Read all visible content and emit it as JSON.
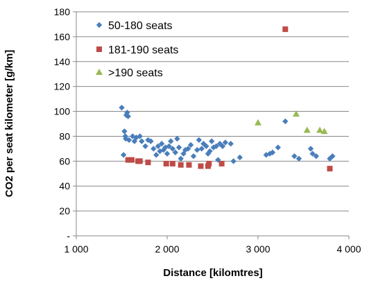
{
  "chart_data": {
    "type": "scatter",
    "xlabel": "Distance [kilomtres]",
    "ylabel": "CO2 per seat kilometer [g/km]",
    "xlim": [
      1000,
      4000
    ],
    "ylim": [
      0,
      180
    ],
    "x_ticks": [
      1000,
      2000,
      3000,
      4000
    ],
    "x_tick_labels": [
      "1 000",
      "2 000",
      "3 000",
      "4 000"
    ],
    "y_ticks": [
      0,
      20,
      40,
      60,
      80,
      100,
      120,
      140,
      160,
      180
    ],
    "y_tick_labels": [
      "-",
      "20",
      "40",
      "60",
      "80",
      "100",
      "120",
      "140",
      "160",
      "180"
    ],
    "grid": "horizontal",
    "legend_position": "top-left",
    "series": [
      {
        "name": "50-180 seats",
        "color": "#4a7ebb",
        "marker": "diamond",
        "points": [
          [
            1500,
            103
          ],
          [
            1520,
            65
          ],
          [
            1530,
            84
          ],
          [
            1540,
            80
          ],
          [
            1545,
            78
          ],
          [
            1550,
            97
          ],
          [
            1560,
            99
          ],
          [
            1570,
            96
          ],
          [
            1580,
            77
          ],
          [
            1620,
            80
          ],
          [
            1640,
            76
          ],
          [
            1660,
            79
          ],
          [
            1700,
            80
          ],
          [
            1720,
            76
          ],
          [
            1760,
            72
          ],
          [
            1790,
            77
          ],
          [
            1820,
            76
          ],
          [
            1850,
            70
          ],
          [
            1880,
            65
          ],
          [
            1900,
            72
          ],
          [
            1920,
            68
          ],
          [
            1940,
            74
          ],
          [
            1960,
            69
          ],
          [
            1980,
            71
          ],
          [
            2000,
            66
          ],
          [
            2020,
            72
          ],
          [
            2040,
            76
          ],
          [
            2060,
            70
          ],
          [
            2090,
            67
          ],
          [
            2110,
            78
          ],
          [
            2130,
            71
          ],
          [
            2150,
            62
          ],
          [
            2180,
            66
          ],
          [
            2200,
            69
          ],
          [
            2230,
            70
          ],
          [
            2260,
            73
          ],
          [
            2290,
            64
          ],
          [
            2330,
            69
          ],
          [
            2350,
            77
          ],
          [
            2380,
            70
          ],
          [
            2400,
            74
          ],
          [
            2430,
            72
          ],
          [
            2450,
            66
          ],
          [
            2470,
            68
          ],
          [
            2490,
            76
          ],
          [
            2510,
            71
          ],
          [
            2540,
            72
          ],
          [
            2560,
            61
          ],
          [
            2580,
            74
          ],
          [
            2610,
            72
          ],
          [
            2640,
            75
          ],
          [
            2700,
            74
          ],
          [
            2730,
            60
          ],
          [
            2800,
            63
          ],
          [
            3090,
            65
          ],
          [
            3130,
            66
          ],
          [
            3160,
            67
          ],
          [
            3220,
            71
          ],
          [
            3300,
            92
          ],
          [
            3400,
            64
          ],
          [
            3450,
            62
          ],
          [
            3580,
            70
          ],
          [
            3600,
            66
          ],
          [
            3640,
            64
          ],
          [
            3790,
            62
          ],
          [
            3820,
            64
          ]
        ]
      },
      {
        "name": "181-190 seats",
        "color": "#be4b48",
        "marker": "square",
        "points": [
          [
            1570,
            61
          ],
          [
            1610,
            61
          ],
          [
            1680,
            60
          ],
          [
            1700,
            60
          ],
          [
            1790,
            59
          ],
          [
            1990,
            58
          ],
          [
            2060,
            58
          ],
          [
            2150,
            57
          ],
          [
            2240,
            57
          ],
          [
            2370,
            56
          ],
          [
            2450,
            56
          ],
          [
            2460,
            58
          ],
          [
            2600,
            58
          ],
          [
            3300,
            166
          ],
          [
            3790,
            54
          ]
        ]
      },
      {
        "name": ">190 seats",
        "color": "#98b954",
        "marker": "triangle",
        "points": [
          [
            3000,
            91
          ],
          [
            3420,
            98
          ],
          [
            3540,
            85
          ],
          [
            3680,
            85
          ],
          [
            3730,
            84
          ]
        ]
      }
    ]
  }
}
